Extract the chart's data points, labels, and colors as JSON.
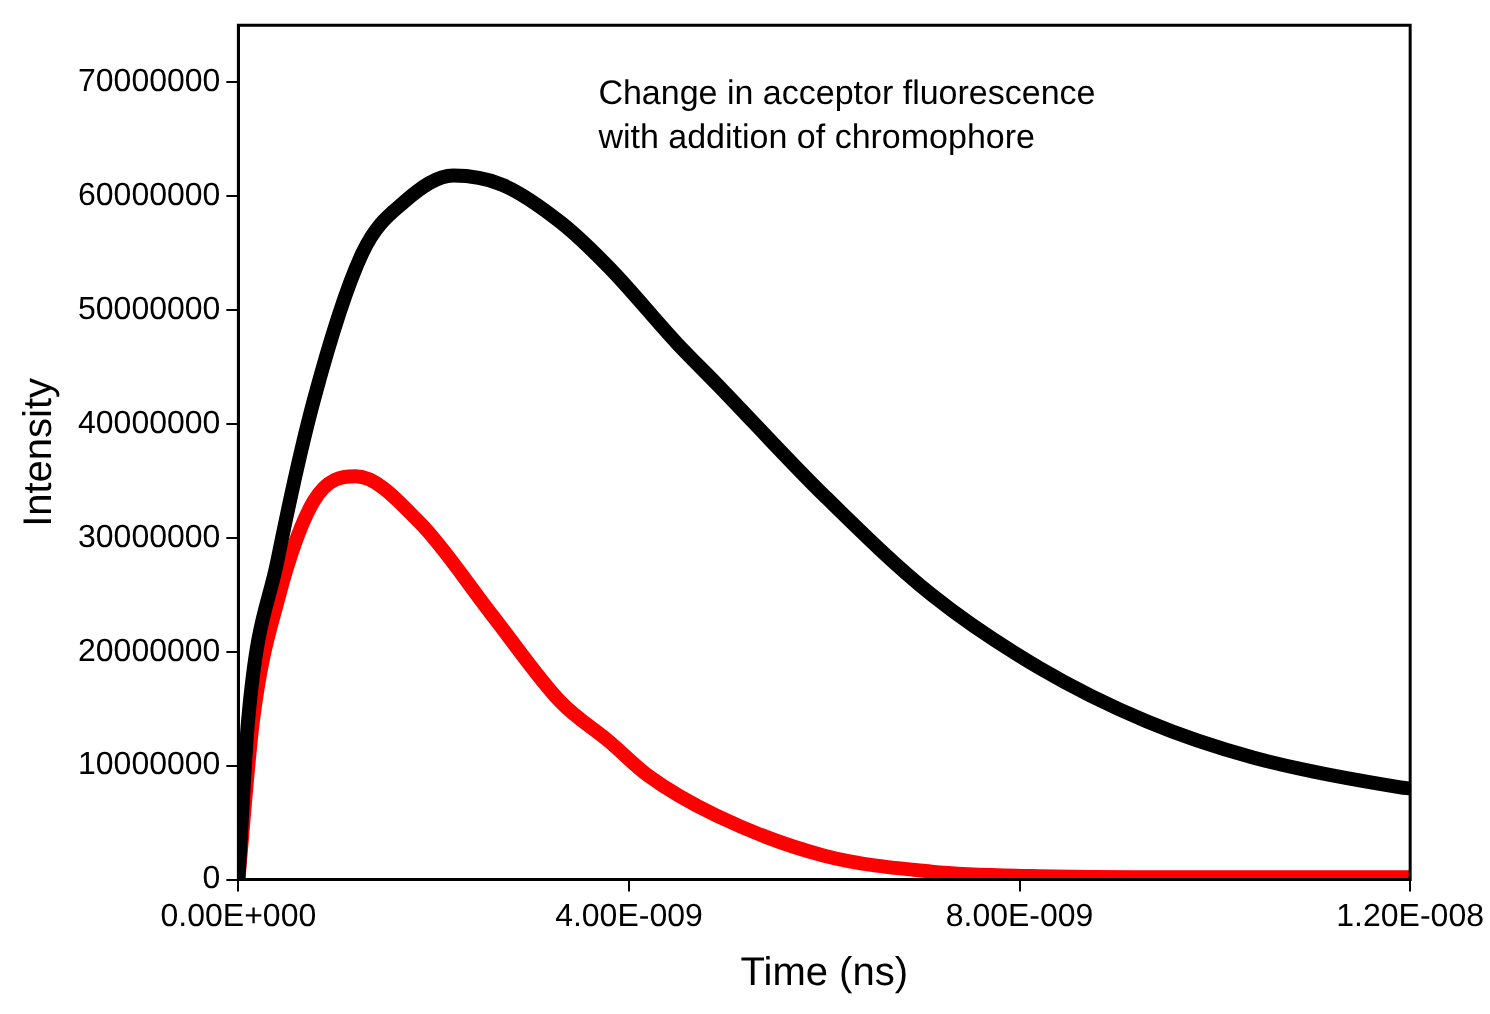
{
  "chart_data": {
    "type": "line",
    "xlabel": "Time (ns)",
    "ylabel": "Intensity",
    "annotations": [
      "Change in acceptor fluorescence\nwith addition of chromophore"
    ],
    "xlim": [
      0,
      1.2e-08
    ],
    "xticks": [
      {
        "value": 0,
        "label": "0.00E+000"
      },
      {
        "value": 4e-09,
        "label": "4.00E-009"
      },
      {
        "value": 8e-09,
        "label": "8.00E-009"
      },
      {
        "value": 1.2e-08,
        "label": "1.20E-008"
      }
    ],
    "ylim": [
      0,
      75000000
    ],
    "yticks": [
      0,
      10000000,
      20000000,
      30000000,
      40000000,
      50000000,
      60000000,
      70000000
    ],
    "grid": false,
    "legend": false,
    "marker": "none",
    "line_style": "solid",
    "series": [
      {
        "color": "#000000",
        "x": [
          0,
          1e-10,
          4e-10,
          7.7e-10,
          1.27e-09,
          1.7e-09,
          2.2e-09,
          2.7e-09,
          3.3e-09,
          3.8e-09,
          4.5e-09,
          4.9e-09,
          6e-09,
          7.1e-09,
          8.2e-09,
          9.3e-09,
          1.04e-08,
          1.19e-08,
          1.2e-08
        ],
        "values": [
          0,
          14000000,
          28000000,
          42000000,
          55000000,
          59500000,
          61800000,
          61000000,
          57700000,
          53700000,
          47000000,
          43500000,
          33700000,
          25000000,
          18600000,
          13900000,
          10700000,
          8100000,
          8000000
        ]
      },
      {
        "color": "#ff0000",
        "x": [
          0,
          1.5e-10,
          4e-10,
          7.7e-10,
          1.2e-09,
          1.85e-09,
          2.6e-09,
          3.3e-09,
          3.8e-09,
          4.2e-09,
          4.9e-09,
          6e-09,
          7.1e-09,
          8.2e-09,
          1e-08,
          1.2e-08
        ],
        "values": [
          0,
          14000000,
          24400000,
          33200000,
          35400000,
          31400000,
          23200000,
          15600000,
          12100000,
          9100000,
          5600000,
          2100000,
          700000,
          300000,
          200000,
          200000
        ]
      }
    ]
  }
}
